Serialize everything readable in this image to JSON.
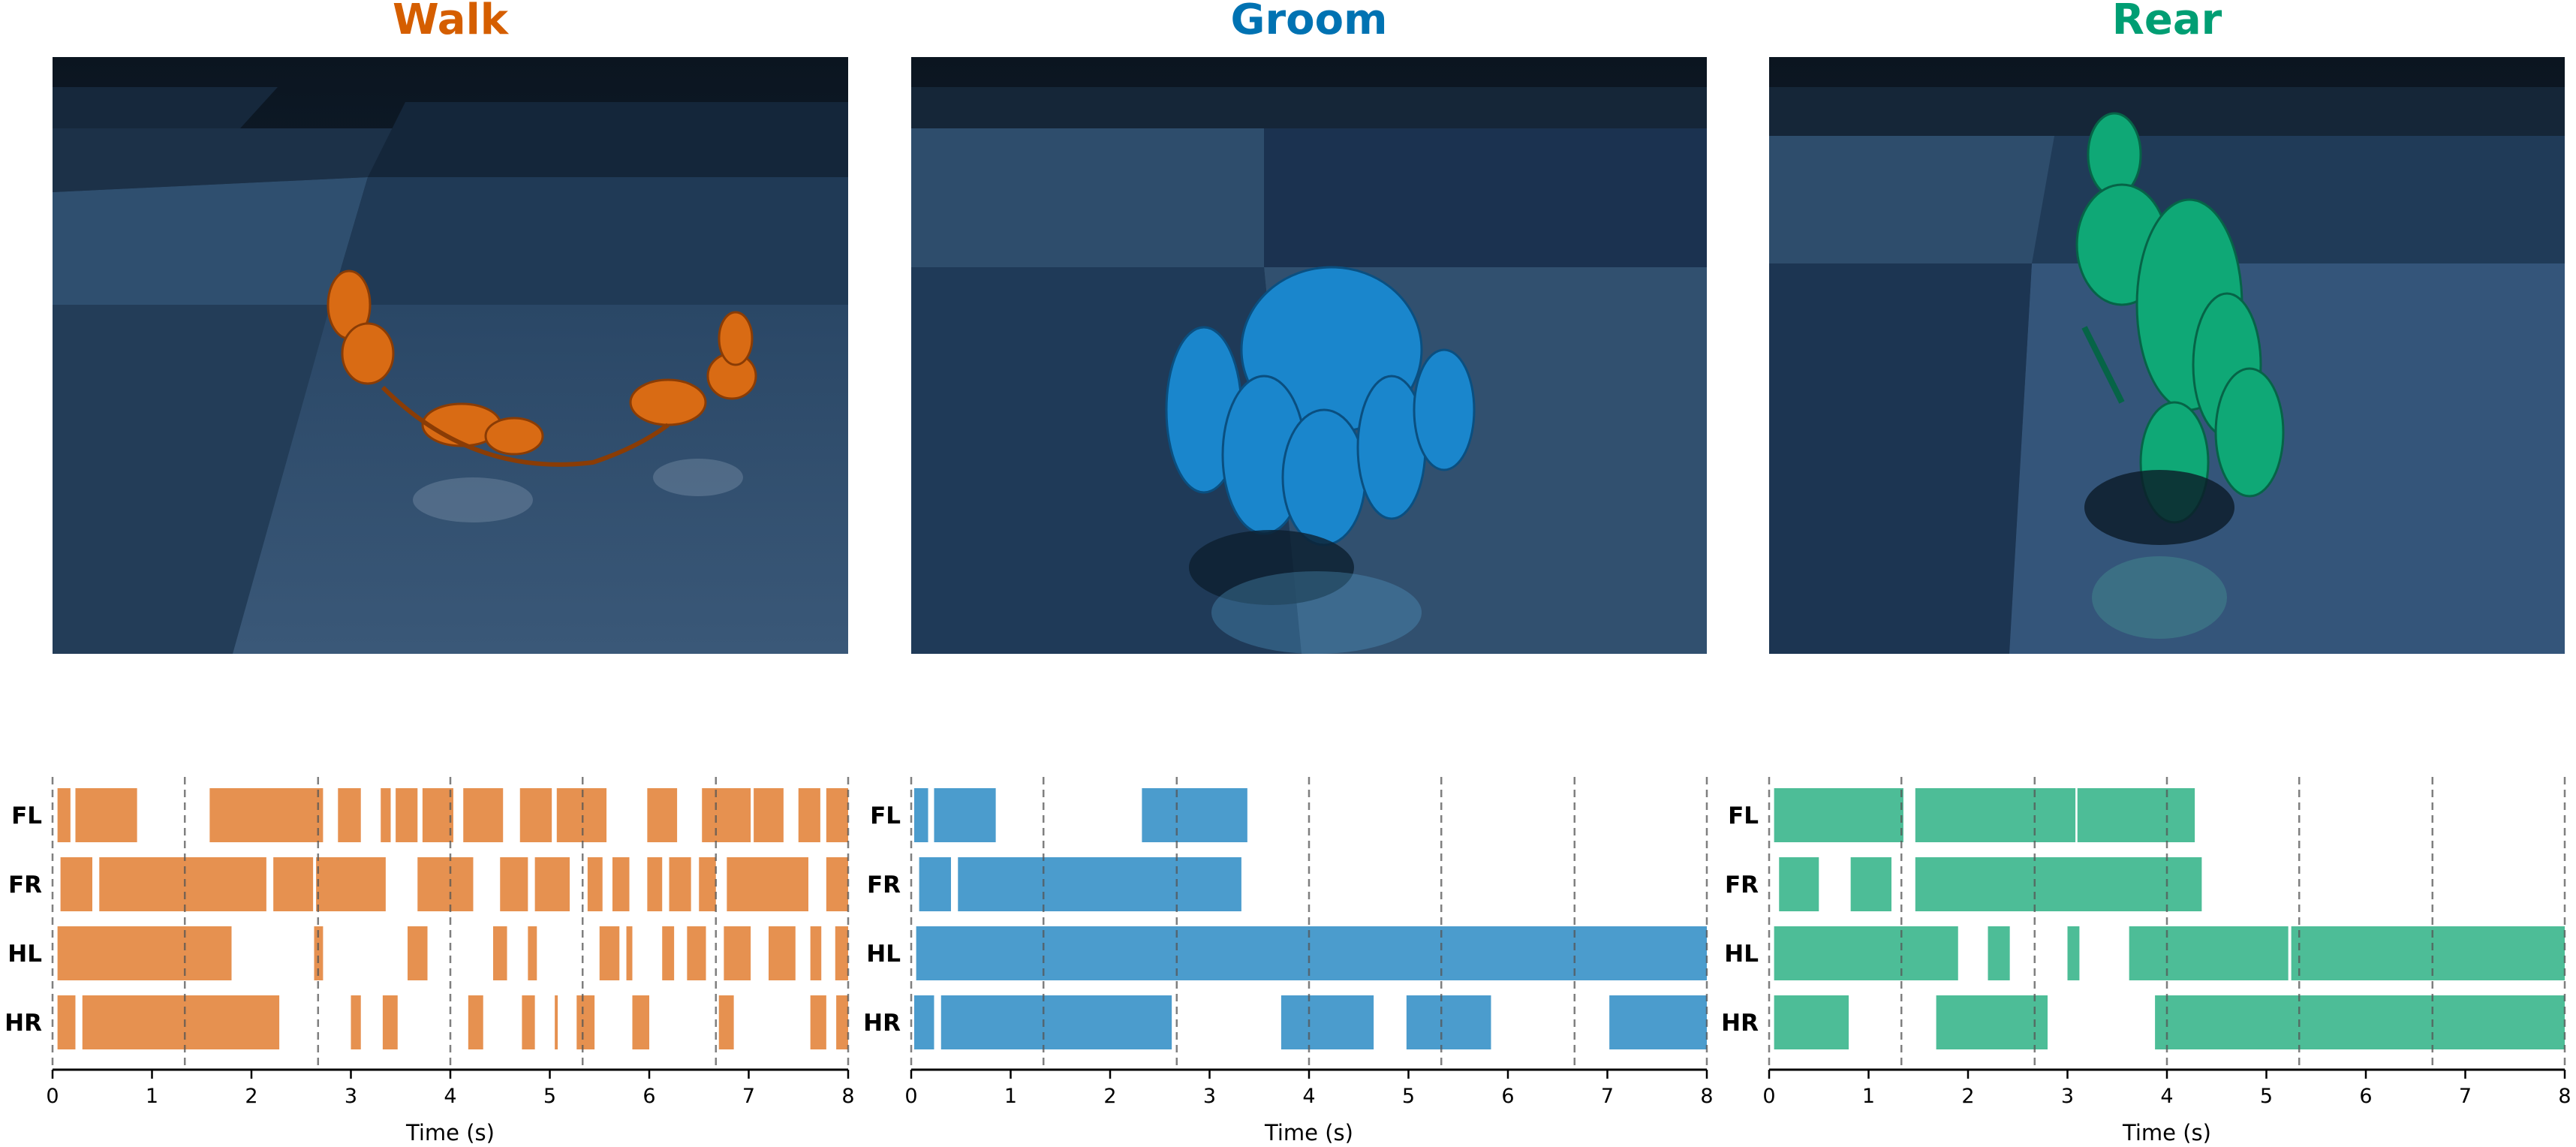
{
  "chart_data": [
    {
      "type": "gait_diagram",
      "title": "Walk",
      "color": "#d55e00",
      "bar_color": "#e69150",
      "xlabel": "Time (s)",
      "xlim": [
        0,
        8
      ],
      "xticks": [
        "0",
        "1",
        "2",
        "3",
        "4",
        "5",
        "6",
        "7",
        "8"
      ],
      "dashed_x": [
        0,
        1.33,
        2.67,
        4.0,
        5.33,
        6.67,
        8.0
      ],
      "rows": [
        "FL",
        "FR",
        "HL",
        "HR"
      ],
      "stance": {
        "FL": [
          [
            0.05,
            0.18
          ],
          [
            0.23,
            0.85
          ],
          [
            1.58,
            2.72
          ],
          [
            2.87,
            3.1
          ],
          [
            3.3,
            3.4
          ],
          [
            3.45,
            3.67
          ],
          [
            3.72,
            4.03
          ],
          [
            4.13,
            4.53
          ],
          [
            4.7,
            5.02
          ],
          [
            5.07,
            5.57
          ],
          [
            5.98,
            6.28
          ],
          [
            6.53,
            7.02
          ],
          [
            7.05,
            7.35
          ],
          [
            7.5,
            7.72
          ],
          [
            7.78,
            8.0
          ]
        ],
        "FR": [
          [
            0.08,
            0.4
          ],
          [
            0.47,
            2.15
          ],
          [
            2.22,
            2.62
          ],
          [
            2.65,
            3.35
          ],
          [
            3.67,
            4.23
          ],
          [
            4.5,
            4.78
          ],
          [
            4.85,
            5.2
          ],
          [
            5.38,
            5.53
          ],
          [
            5.63,
            5.8
          ],
          [
            5.98,
            6.13
          ],
          [
            6.2,
            6.42
          ],
          [
            6.5,
            6.67
          ],
          [
            6.78,
            7.6
          ],
          [
            7.78,
            8.0
          ]
        ],
        "HL": [
          [
            0.05,
            1.8
          ],
          [
            2.63,
            2.72
          ],
          [
            3.57,
            3.77
          ],
          [
            4.43,
            4.57
          ],
          [
            4.78,
            4.87
          ],
          [
            5.5,
            5.7
          ],
          [
            5.77,
            5.83
          ],
          [
            6.13,
            6.25
          ],
          [
            6.38,
            6.57
          ],
          [
            6.75,
            7.02
          ],
          [
            7.2,
            7.47
          ],
          [
            7.62,
            7.73
          ],
          [
            7.87,
            8.0
          ]
        ],
        "HR": [
          [
            0.05,
            0.23
          ],
          [
            0.3,
            2.28
          ],
          [
            3.0,
            3.1
          ],
          [
            3.32,
            3.47
          ],
          [
            4.18,
            4.33
          ],
          [
            4.72,
            4.85
          ],
          [
            5.05,
            5.08
          ],
          [
            5.27,
            5.45
          ],
          [
            5.83,
            6.0
          ],
          [
            6.7,
            6.85
          ],
          [
            7.62,
            7.78
          ],
          [
            7.88,
            8.0
          ]
        ]
      }
    },
    {
      "type": "gait_diagram",
      "title": "Groom",
      "color": "#0072b2",
      "bar_color": "#4b9ccd",
      "xlabel": "Time (s)",
      "xlim": [
        0,
        8
      ],
      "xticks": [
        "0",
        "1",
        "2",
        "3",
        "4",
        "5",
        "6",
        "7",
        "8"
      ],
      "dashed_x": [
        0,
        1.33,
        2.67,
        4.0,
        5.33,
        6.67,
        8.0
      ],
      "rows": [
        "FL",
        "FR",
        "HL",
        "HR"
      ],
      "stance": {
        "FL": [
          [
            0.03,
            0.17
          ],
          [
            0.23,
            0.85
          ],
          [
            2.32,
            3.38
          ]
        ],
        "FR": [
          [
            0.08,
            0.4
          ],
          [
            0.47,
            3.32
          ]
        ],
        "HL": [
          [
            0.05,
            8.0
          ]
        ],
        "HR": [
          [
            0.03,
            0.23
          ],
          [
            0.3,
            2.62
          ],
          [
            3.72,
            4.65
          ],
          [
            4.98,
            5.83
          ],
          [
            7.02,
            8.0
          ]
        ]
      }
    },
    {
      "type": "gait_diagram",
      "title": "Rear",
      "color": "#009e73",
      "bar_color": "#4dbd97",
      "xlabel": "Time (s)",
      "xlim": [
        0,
        8
      ],
      "xticks": [
        "0",
        "1",
        "2",
        "3",
        "4",
        "5",
        "6",
        "7",
        "8"
      ],
      "dashed_x": [
        0,
        1.33,
        2.67,
        4.0,
        5.33,
        6.67,
        8.0
      ],
      "rows": [
        "FL",
        "FR",
        "HL",
        "HR"
      ],
      "stance": {
        "FL": [
          [
            0.05,
            1.35
          ],
          [
            1.47,
            3.08
          ],
          [
            3.1,
            4.28
          ]
        ],
        "FR": [
          [
            0.1,
            0.5
          ],
          [
            0.82,
            1.23
          ],
          [
            1.47,
            4.35
          ]
        ],
        "HL": [
          [
            0.05,
            1.9
          ],
          [
            2.2,
            2.42
          ],
          [
            3.0,
            3.12
          ],
          [
            3.62,
            5.22
          ],
          [
            5.25,
            8.0
          ]
        ],
        "HR": [
          [
            0.05,
            0.8
          ],
          [
            1.68,
            2.8
          ],
          [
            3.88,
            8.0
          ]
        ]
      }
    }
  ]
}
